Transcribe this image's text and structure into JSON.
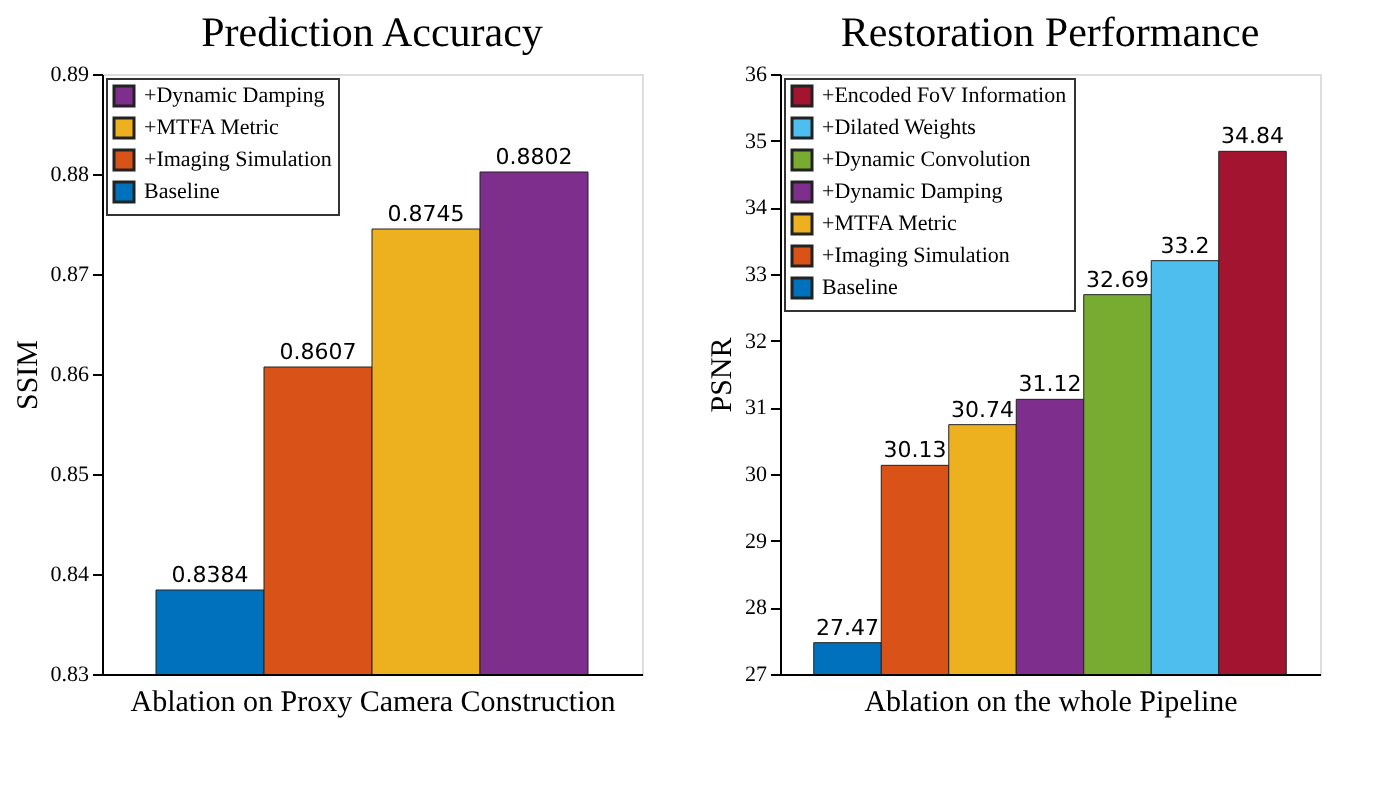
{
  "chart_data": [
    {
      "type": "bar",
      "title": "Prediction Accuracy",
      "xlabel": "Ablation on Proxy Camera Construction",
      "ylabel": "SSIM",
      "categories": [
        null
      ],
      "ylim": [
        0.83,
        0.89
      ],
      "yticks": [
        0.83,
        0.84,
        0.85,
        0.86,
        0.87,
        0.88,
        0.89
      ],
      "grid": false,
      "legend": "top left",
      "data_labels": true,
      "series": [
        {
          "name": "Baseline",
          "color": "#0072bd",
          "values": [
            0.8384
          ]
        },
        {
          "name": "+Imaging Simulation",
          "color": "#d95319",
          "values": [
            0.8607
          ]
        },
        {
          "name": "+MTFA Metric",
          "color": "#edb120",
          "values": [
            0.8745
          ]
        },
        {
          "name": "+Dynamic Damping",
          "color": "#7e2f8e",
          "values": [
            0.8802
          ]
        }
      ]
    },
    {
      "type": "bar",
      "title": "Restoration Performance",
      "xlabel": "Ablation on the whole Pipeline",
      "ylabel": "PSNR",
      "categories": [
        null
      ],
      "ylim": [
        27,
        36
      ],
      "yticks": [
        27,
        28,
        29,
        30,
        31,
        32,
        33,
        34,
        35,
        36
      ],
      "grid": false,
      "legend": "top left",
      "data_labels": true,
      "series": [
        {
          "name": "Baseline",
          "color": "#0072bd",
          "values": [
            27.47
          ]
        },
        {
          "name": "+Imaging Simulation",
          "color": "#d95319",
          "values": [
            30.13
          ]
        },
        {
          "name": "+MTFA Metric",
          "color": "#edb120",
          "values": [
            30.74
          ]
        },
        {
          "name": "+Dynamic Damping",
          "color": "#7e2f8e",
          "values": [
            31.12
          ]
        },
        {
          "name": "+Dynamic Convolution",
          "color": "#77ac30",
          "values": [
            32.69
          ]
        },
        {
          "name": "+Dilated Weights",
          "color": "#4dbeee",
          "values": [
            33.2
          ]
        },
        {
          "name": "+Encoded FoV Information",
          "color": "#a2142f",
          "values": [
            34.84
          ]
        }
      ]
    }
  ]
}
